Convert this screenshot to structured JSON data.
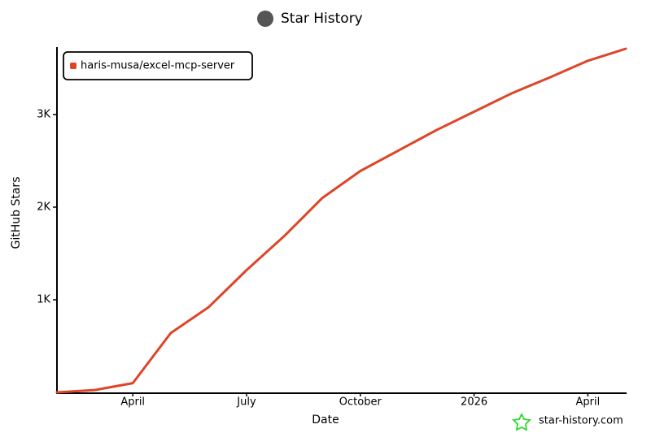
{
  "chart_data": {
    "type": "line",
    "title": "Star History",
    "x_label": "Date",
    "y_label": "GitHub Stars",
    "watermark": "star-history.com",
    "categories": [
      null,
      null,
      "April",
      null,
      null,
      "July",
      null,
      null,
      "October",
      null,
      null,
      "2026",
      null,
      null,
      "April",
      null
    ],
    "series": [
      {
        "name": "haris-musa/excel-mcp-server",
        "color": "#dd4528",
        "values": [
          0,
          25,
          100,
          640,
          920,
          1320,
          1690,
          2100,
          2390,
          2610,
          2830,
          3030,
          3230,
          3400,
          3580,
          3710
        ]
      }
    ],
    "ylim": [
      0,
      3710
    ],
    "yticks": [
      {
        "value": 1000,
        "label": "1K"
      },
      {
        "value": 2000,
        "label": "2K"
      },
      {
        "value": 3000,
        "label": "3K"
      }
    ],
    "legend": "top-left"
  }
}
